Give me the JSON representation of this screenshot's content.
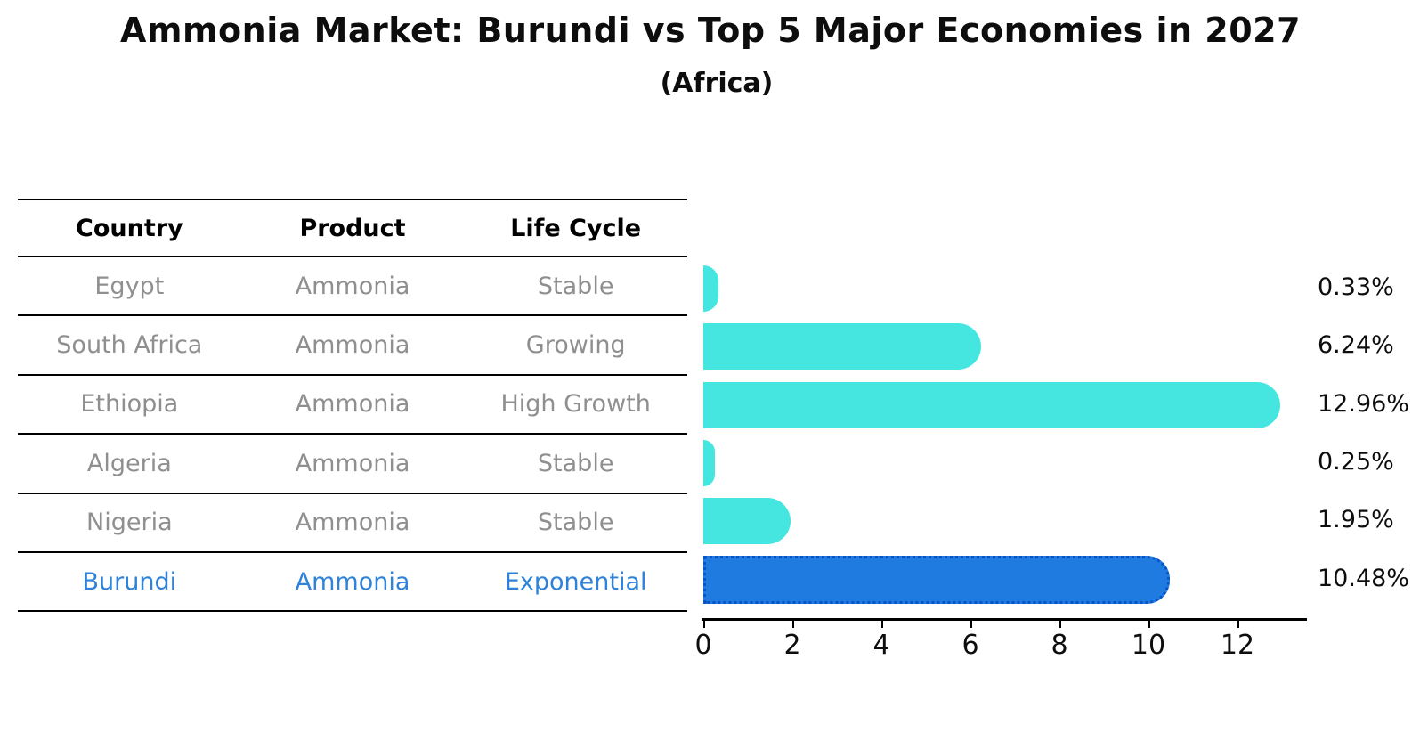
{
  "title": "Ammonia Market: Burundi vs Top 5 Major Economies in 2027",
  "subtitle": "(Africa)",
  "table": {
    "headers": [
      "Country",
      "Product",
      "Life Cycle"
    ],
    "rows": [
      {
        "country": "Egypt",
        "product": "Ammonia",
        "life_cycle": "Stable",
        "highlight": false
      },
      {
        "country": "South Africa",
        "product": "Ammonia",
        "life_cycle": "Growing",
        "highlight": false
      },
      {
        "country": "Ethiopia",
        "product": "Ammonia",
        "life_cycle": "High Growth",
        "highlight": false
      },
      {
        "country": "Algeria",
        "product": "Ammonia",
        "life_cycle": "Stable",
        "highlight": false
      },
      {
        "country": "Nigeria",
        "product": "Ammonia",
        "life_cycle": "Stable",
        "highlight": false
      },
      {
        "country": "Burundi",
        "product": "Ammonia",
        "life_cycle": "Exponential",
        "highlight": true
      }
    ]
  },
  "chart_data": {
    "type": "bar",
    "orientation": "horizontal",
    "title": "Ammonia Market: Burundi vs Top 5 Major Economies in 2027 (Africa)",
    "categories": [
      "Egypt",
      "South Africa",
      "Ethiopia",
      "Algeria",
      "Nigeria",
      "Burundi"
    ],
    "values": [
      0.33,
      6.24,
      12.96,
      0.25,
      1.95,
      10.48
    ],
    "value_labels": [
      "0.33%",
      "6.24%",
      "12.96%",
      "0.25%",
      "1.95%",
      "10.48%"
    ],
    "highlight_index": 5,
    "x_ticks": [
      "0",
      "2",
      "4",
      "6",
      "8",
      "10",
      "12"
    ],
    "xlim": [
      0,
      13.6
    ],
    "xlabel": "",
    "ylabel": "",
    "grid": false,
    "legend": false
  },
  "colors": {
    "bar": "#45E6E0",
    "highlight_bar": "#1F7BDF",
    "highlight_bar_border": "#0A53C7",
    "row_text": "#8F8F8F",
    "highlight_text": "#2E82D9",
    "heading_text": "#000000",
    "axis": "#000000",
    "background": "#FFFFFF"
  }
}
